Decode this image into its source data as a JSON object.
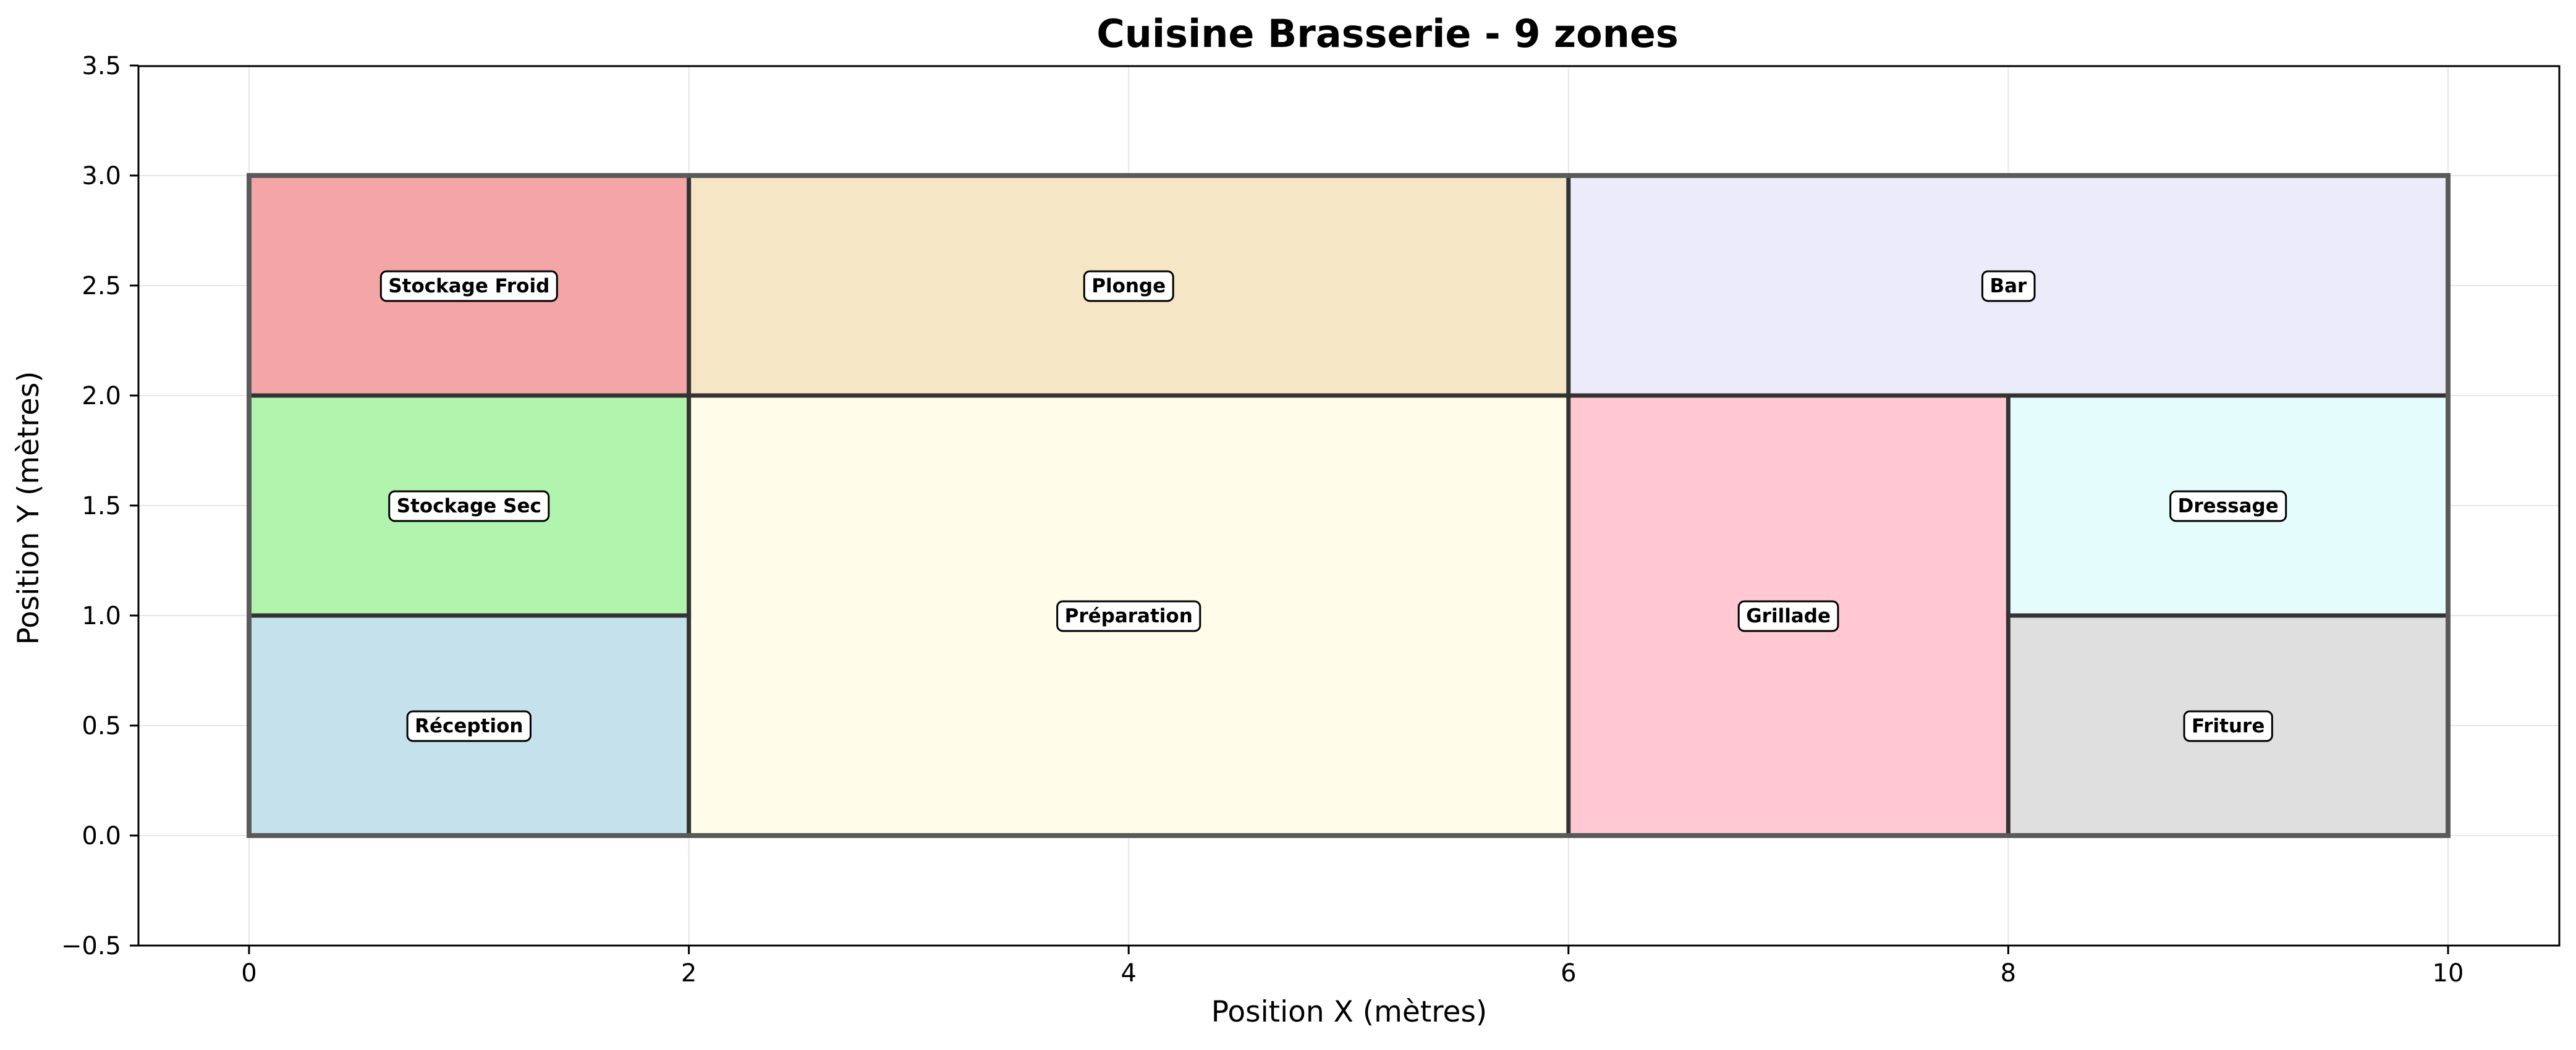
{
  "chart_data": {
    "type": "floor-plan",
    "title": "Cuisine Brasserie - 9 zones",
    "xlabel": "Position X (mètres)",
    "ylabel": "Position Y (mètres)",
    "xlim": [
      -0.5,
      10.5
    ],
    "ylim": [
      -0.5,
      3.5
    ],
    "xticks": [
      0,
      2,
      4,
      6,
      8,
      10
    ],
    "yticks": [
      -0.5,
      0.0,
      0.5,
      1.0,
      1.5,
      2.0,
      2.5,
      3.0,
      3.5
    ],
    "xtick_labels": [
      "0",
      "2",
      "4",
      "6",
      "8",
      "10"
    ],
    "ytick_labels": [
      "−0.5",
      "0.0",
      "0.5",
      "1.0",
      "1.5",
      "2.0",
      "2.5",
      "3.0",
      "3.5"
    ],
    "grid": true,
    "zones": [
      {
        "name": "Stockage Froid",
        "x0": 0,
        "x1": 2,
        "y0": 2,
        "y1": 3,
        "color": "#f4a6a6"
      },
      {
        "name": "Plonge",
        "x0": 2,
        "x1": 6,
        "y0": 2,
        "y1": 3,
        "color": "#f5e6c6"
      },
      {
        "name": "Bar",
        "x0": 6,
        "x1": 10,
        "y0": 2,
        "y1": 3,
        "color": "#ecebf9"
      },
      {
        "name": "Stockage Sec",
        "x0": 0,
        "x1": 2,
        "y0": 1,
        "y1": 2,
        "color": "#b1f4ae"
      },
      {
        "name": "Réception",
        "x0": 0,
        "x1": 2,
        "y0": 0,
        "y1": 1,
        "color": "#c5e2ec"
      },
      {
        "name": "Préparation",
        "x0": 2,
        "x1": 6,
        "y0": 0,
        "y1": 2,
        "color": "#fffde9"
      },
      {
        "name": "Grillade",
        "x0": 6,
        "x1": 8,
        "y0": 0,
        "y1": 2,
        "color": "#ffc8d2"
      },
      {
        "name": "Dressage",
        "x0": 8,
        "x1": 10,
        "y0": 1,
        "y1": 2,
        "color": "#e5fcfd"
      },
      {
        "name": "Friture",
        "x0": 8,
        "x1": 10,
        "y0": 0,
        "y1": 1,
        "color": "#dfdfdf"
      }
    ],
    "inner_walls": [
      {
        "x0": 0,
        "y0": 2,
        "x1": 10,
        "y1": 2
      },
      {
        "x0": 0,
        "y0": 1,
        "x1": 2,
        "y1": 1
      },
      {
        "x0": 8,
        "y0": 1,
        "x1": 10,
        "y1": 1
      },
      {
        "x0": 2,
        "y0": 0,
        "x1": 2,
        "y1": 3
      },
      {
        "x0": 6,
        "y0": 0,
        "x1": 6,
        "y1": 3
      },
      {
        "x0": 8,
        "y0": 0,
        "x1": 8,
        "y1": 2
      }
    ]
  }
}
